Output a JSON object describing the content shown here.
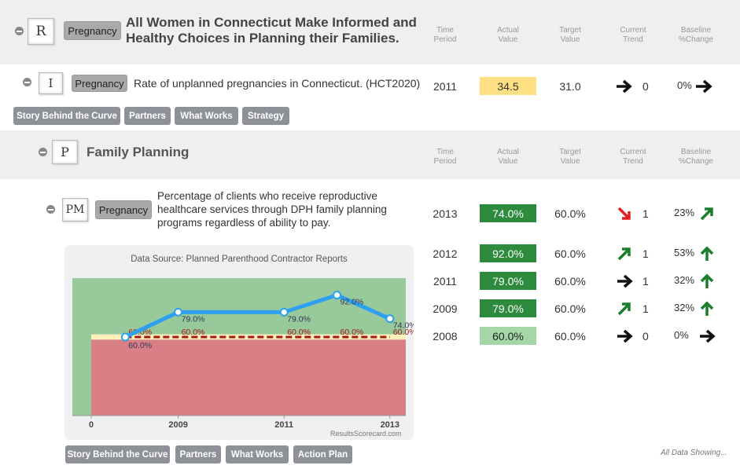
{
  "column_headers": {
    "time_period": [
      "Time",
      "Period"
    ],
    "actual_value": [
      "Actual",
      "Value"
    ],
    "target_value": [
      "Target",
      "Value"
    ],
    "current_trend": [
      "Current",
      "Trend"
    ],
    "baseline_change": [
      "Baseline",
      "%Change"
    ]
  },
  "result": {
    "level": "R",
    "tag": "Pregnancy",
    "title_line1": "All Women in Connecticut Make Informed and",
    "title_line2": "Healthy Choices in Planning their Families."
  },
  "indicator": {
    "level": "I",
    "tag": "Pregnancy",
    "title": "Rate of unplanned pregnancies in Connecticut. (HCT2020)",
    "period": "2011",
    "actual": "34.5",
    "target": "31.0",
    "trend_count": "0",
    "baseline": "0%",
    "buttons": [
      "Story Behind the Curve",
      "Partners",
      "What Works",
      "Strategy"
    ]
  },
  "program": {
    "level": "P",
    "title": "Family Planning"
  },
  "measure": {
    "level": "PM",
    "tag": "Pregnancy",
    "title_line1": "Percentage of clients who receive reproductive",
    "title_line2": "healthcare services through DPH family planning",
    "title_line3": "programs regardless of ability to pay.",
    "buttons": [
      "Story Behind the Curve",
      "Partners",
      "What Works",
      "Action Plan"
    ],
    "footer_note": "All Data Showing...",
    "rows": [
      {
        "period": "2013",
        "actual": "74.0%",
        "target": "60.0%",
        "trend": "down-red",
        "count": "1",
        "baseline": "23%",
        "baseline_dir": "up-right-green"
      },
      {
        "period": "2012",
        "actual": "92.0%",
        "target": "60.0%",
        "trend": "up-right-green",
        "count": "1",
        "baseline": "53%",
        "baseline_dir": "up-green"
      },
      {
        "period": "2011",
        "actual": "79.0%",
        "target": "60.0%",
        "trend": "right-black",
        "count": "1",
        "baseline": "32%",
        "baseline_dir": "up-green"
      },
      {
        "period": "2009",
        "actual": "79.0%",
        "target": "60.0%",
        "trend": "up-right-green",
        "count": "1",
        "baseline": "32%",
        "baseline_dir": "up-green"
      },
      {
        "period": "2008",
        "actual": "60.0%",
        "target": "60.0%",
        "trend": "right-black",
        "count": "0",
        "baseline": "0%",
        "baseline_dir": "right-black"
      }
    ]
  },
  "chart_data": {
    "type": "line",
    "title": "Data Source: Planned Parenthood Contractor Reports",
    "credit": "ResultsScorecard.com",
    "x": [
      2008,
      2009,
      2011,
      2012,
      2013
    ],
    "x_ticks": [
      "0",
      "2009",
      "2011",
      "2013"
    ],
    "series": [
      {
        "values": [
          60.0,
          79.0,
          79.0,
          92.0,
          74.0
        ]
      },
      {
        "values": [
          60.0,
          60.0,
          60.0,
          60.0,
          60.0
        ]
      }
    ],
    "ylim": [
      0,
      105
    ]
  },
  "colors": {
    "actual_yellow": "#ffe082",
    "green_dark": "#2e8b3e",
    "green_light": "#a5d6a7",
    "arrow_green": "#1a7f2a",
    "arrow_red": "#e02020",
    "tag_gray": "#a9a9a9",
    "button_gray": "#8e9298"
  }
}
